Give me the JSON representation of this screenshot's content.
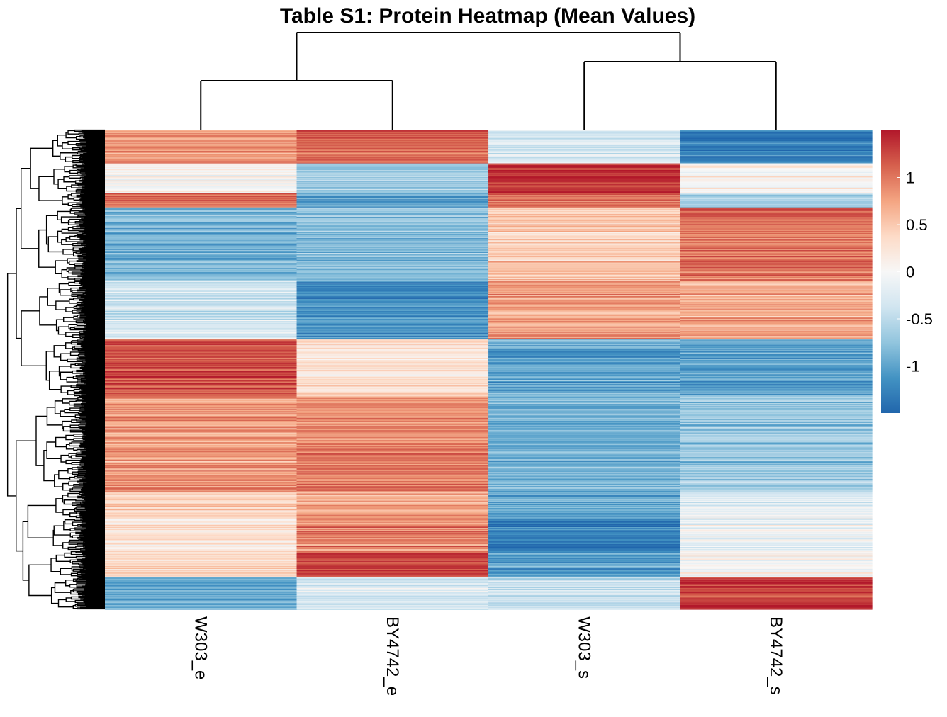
{
  "chart_data": {
    "type": "heatmap",
    "title": "Table S1: Protein Heatmap (Mean Values)",
    "columns": [
      "W303_e",
      "BY4742_e",
      "W303_s",
      "BY4742_s"
    ],
    "row_clusters": [
      {
        "rows": 46,
        "mean": [
          0.8,
          1.1,
          -0.3,
          -1.3
        ]
      },
      {
        "rows": 40,
        "mean": [
          0.0,
          -0.7,
          1.4,
          0.1
        ]
      },
      {
        "rows": 20,
        "mean": [
          1.1,
          -1.0,
          1.0,
          -0.6
        ]
      },
      {
        "rows": 100,
        "mean": [
          -0.9,
          -0.8,
          0.5,
          1.0
        ]
      },
      {
        "rows": 80,
        "mean": [
          -0.3,
          -1.2,
          0.8,
          0.7
        ]
      },
      {
        "rows": 78,
        "mean": [
          1.2,
          0.3,
          -1.0,
          -1.0
        ]
      },
      {
        "rows": 130,
        "mean": [
          0.8,
          0.9,
          -0.9,
          -0.7
        ]
      },
      {
        "rows": 36,
        "mean": [
          0.4,
          0.7,
          -1.0,
          -0.2
        ]
      },
      {
        "rows": 44,
        "mean": [
          0.2,
          0.9,
          -1.3,
          -0.1
        ]
      },
      {
        "rows": 36,
        "mean": [
          0.3,
          1.3,
          -1.1,
          0.0
        ]
      },
      {
        "rows": 44,
        "mean": [
          -0.9,
          -0.3,
          -0.4,
          1.3
        ]
      }
    ],
    "value_range": [
      -1.5,
      1.5
    ],
    "color_scale": [
      "#2166ac",
      "#4393c3",
      "#92c5de",
      "#d1e5f0",
      "#f7f7f7",
      "#fddbc7",
      "#f4a582",
      "#d6604d",
      "#b2182b"
    ],
    "legend": {
      "position": "right",
      "ticks": [
        1,
        0.5,
        0,
        -0.5,
        -1
      ],
      "tick_labels": [
        "1",
        "0.5",
        "0",
        "-0.5",
        "-1"
      ]
    },
    "column_dendrogram": {
      "merges": [
        [
          "W303_e",
          "BY4742_e"
        ],
        [
          "W303_s",
          "BY4742_s"
        ],
        [
          "left",
          "right"
        ]
      ]
    },
    "row_dendrogram": true
  }
}
